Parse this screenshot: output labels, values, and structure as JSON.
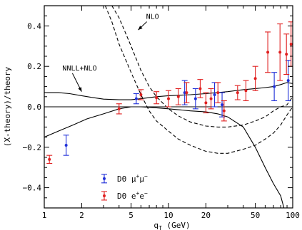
{
  "chart_data": {
    "type": "scatter",
    "title": "",
    "xlabel": "q",
    "xlabel_sub": "T",
    "xlabel_unit": " (GeV)",
    "ylabel": "(X-theory)/theory",
    "x_scale": "log",
    "xlim": [
      1,
      100
    ],
    "ylim": [
      -0.5,
      0.5
    ],
    "x_ticks": [
      1,
      2,
      5,
      10,
      20,
      50,
      100
    ],
    "x_tick_labels": [
      "1",
      "2",
      "5",
      "10",
      "20",
      "50",
      "100"
    ],
    "y_ticks": [
      -0.4,
      -0.2,
      0.0,
      0.2,
      0.4
    ],
    "y_tick_labels": [
      "−0.4",
      "−0.2",
      "0.0",
      "0.2",
      "0.4"
    ],
    "legend_position": "lower-left",
    "series": [
      {
        "name": "D0 μ+μ−",
        "legend_parts": [
          "D0 μ",
          "+",
          "μ",
          "−"
        ],
        "color": "#1f2fd8",
        "marker": "dot-errorbar",
        "points": [
          {
            "x": 1.5,
            "y": -0.19,
            "err": 0.05
          },
          {
            "x": 5.5,
            "y": 0.04,
            "err": 0.025
          },
          {
            "x": 13.5,
            "y": 0.07,
            "err": 0.06
          },
          {
            "x": 16.5,
            "y": 0.04,
            "err": 0.05
          },
          {
            "x": 23.5,
            "y": 0.06,
            "err": 0.06
          },
          {
            "x": 27,
            "y": 0.01,
            "err": 0.06
          },
          {
            "x": 71,
            "y": 0.1,
            "err": 0.07
          },
          {
            "x": 92,
            "y": 0.13,
            "err": 0.1
          }
        ]
      },
      {
        "name": "D0 e+e−",
        "legend_parts": [
          "D0 e",
          "+",
          "e",
          "−"
        ],
        "color": "#e02020",
        "marker": "dot-errorbar",
        "points": [
          {
            "x": 1.1,
            "y": -0.26,
            "err": 0.02
          },
          {
            "x": 4.0,
            "y": -0.01,
            "err": 0.025
          },
          {
            "x": 6.0,
            "y": 0.06,
            "err": 0.025
          },
          {
            "x": 8.0,
            "y": 0.045,
            "err": 0.03
          },
          {
            "x": 10.0,
            "y": 0.04,
            "err": 0.04
          },
          {
            "x": 12.0,
            "y": 0.05,
            "err": 0.04
          },
          {
            "x": 14.0,
            "y": 0.07,
            "err": 0.05
          },
          {
            "x": 18.0,
            "y": 0.09,
            "err": 0.045
          },
          {
            "x": 20.0,
            "y": 0.02,
            "err": 0.05
          },
          {
            "x": 22.0,
            "y": 0.04,
            "err": 0.05
          },
          {
            "x": 25.0,
            "y": 0.07,
            "err": 0.05
          },
          {
            "x": 28.0,
            "y": -0.02,
            "err": 0.05
          },
          {
            "x": 36.0,
            "y": 0.07,
            "err": 0.035
          },
          {
            "x": 42.0,
            "y": 0.08,
            "err": 0.05
          },
          {
            "x": 50.0,
            "y": 0.14,
            "err": 0.06
          },
          {
            "x": 63.0,
            "y": 0.27,
            "err": 0.1
          },
          {
            "x": 79.0,
            "y": 0.27,
            "err": 0.14
          },
          {
            "x": 89.0,
            "y": 0.26,
            "err": 0.1
          },
          {
            "x": 97.0,
            "y": 0.31,
            "err": 0.11
          }
        ]
      }
    ],
    "curves": [
      {
        "name": "NNLL+NLO",
        "style": "solid",
        "points": [
          [
            1,
            0.07
          ],
          [
            1.3,
            0.07
          ],
          [
            1.6,
            0.065
          ],
          [
            2.0,
            0.055
          ],
          [
            2.5,
            0.045
          ],
          [
            3,
            0.038
          ],
          [
            4,
            0.035
          ],
          [
            5,
            0.035
          ],
          [
            6,
            0.04
          ],
          [
            8,
            0.05
          ],
          [
            10,
            0.055
          ],
          [
            15,
            0.06
          ],
          [
            20,
            0.065
          ],
          [
            30,
            0.075
          ],
          [
            40,
            0.085
          ],
          [
            50,
            0.09
          ],
          [
            60,
            0.095
          ],
          [
            70,
            0.1
          ],
          [
            80,
            0.11
          ],
          [
            90,
            0.12
          ],
          [
            100,
            0.115
          ]
        ]
      },
      {
        "name": "NNLL+NLO band upper",
        "style": "solid",
        "points": [
          [
            1,
            -0.15
          ],
          [
            1.3,
            -0.12
          ],
          [
            1.7,
            -0.09
          ],
          [
            2.2,
            -0.06
          ],
          [
            3,
            -0.035
          ],
          [
            4,
            -0.01
          ],
          [
            5,
            0.0
          ],
          [
            6,
            0.0
          ],
          [
            8,
            -0.005
          ],
          [
            10,
            -0.01
          ],
          [
            15,
            -0.02
          ],
          [
            20,
            -0.025
          ],
          [
            25,
            -0.035
          ],
          [
            30,
            -0.05
          ],
          [
            40,
            -0.1
          ],
          [
            50,
            -0.2
          ],
          [
            60,
            -0.3
          ],
          [
            70,
            -0.38
          ],
          [
            80,
            -0.44
          ],
          [
            85,
            -0.5
          ]
        ]
      },
      {
        "name": "NNLL+NLO band lower",
        "style": "solid",
        "points": [
          [
            1,
            0.0
          ],
          [
            100,
            0.0
          ]
        ]
      },
      {
        "name": "NLO",
        "style": "dashed",
        "points": [
          [
            3.5,
            0.5
          ],
          [
            4,
            0.44
          ],
          [
            5,
            0.3
          ],
          [
            6,
            0.18
          ],
          [
            7,
            0.1
          ],
          [
            8,
            0.05
          ],
          [
            10,
            -0.01
          ],
          [
            12,
            -0.045
          ],
          [
            15,
            -0.075
          ],
          [
            20,
            -0.095
          ],
          [
            25,
            -0.1
          ],
          [
            30,
            -0.1
          ],
          [
            40,
            -0.09
          ],
          [
            50,
            -0.07
          ],
          [
            60,
            -0.05
          ],
          [
            70,
            -0.02
          ],
          [
            80,
            0.0
          ],
          [
            90,
            0.01
          ],
          [
            100,
            0.05
          ]
        ]
      },
      {
        "name": "NLO lower",
        "style": "dashed",
        "points": [
          [
            3.1,
            0.5
          ],
          [
            3.5,
            0.42
          ],
          [
            4,
            0.31
          ],
          [
            5,
            0.17
          ],
          [
            6,
            0.06
          ],
          [
            7,
            -0.02
          ],
          [
            8,
            -0.07
          ],
          [
            10,
            -0.12
          ],
          [
            12,
            -0.16
          ],
          [
            15,
            -0.19
          ],
          [
            20,
            -0.22
          ],
          [
            25,
            -0.23
          ],
          [
            30,
            -0.23
          ],
          [
            40,
            -0.21
          ],
          [
            50,
            -0.19
          ],
          [
            60,
            -0.16
          ],
          [
            70,
            -0.13
          ],
          [
            80,
            -0.09
          ],
          [
            90,
            -0.04
          ],
          [
            100,
            0.0
          ]
        ]
      }
    ],
    "annotations": [
      {
        "text": "NLO",
        "x": 6.6,
        "y": 0.435,
        "arrow_to": [
          5.7,
          0.38
        ]
      },
      {
        "text": "NNLL+NLO",
        "x": 1.4,
        "y": 0.18,
        "arrow_to": [
          2.0,
          0.075
        ]
      }
    ]
  }
}
